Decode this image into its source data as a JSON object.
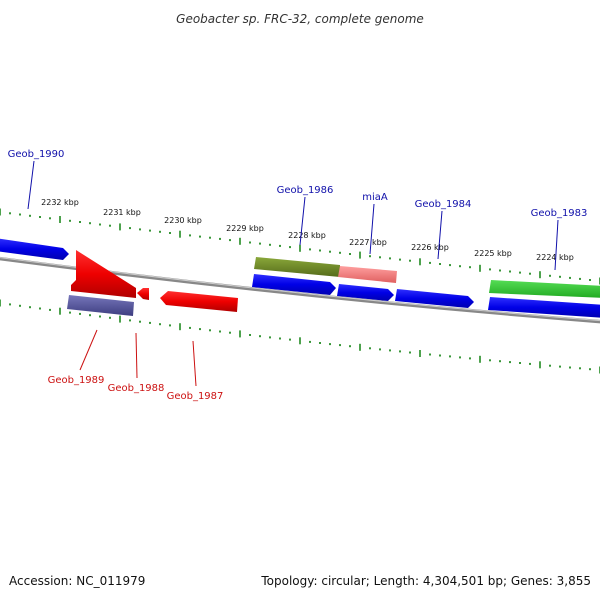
{
  "title": "Geobacter sp. FRC-32, complete genome",
  "footer": {
    "accession": "Accession: NC_011979",
    "summary": "Topology: circular; Length: 4,304,501 bp; Genes: 3,855"
  },
  "ticks": [
    "2232 kbp",
    "2231 kbp",
    "2230 kbp",
    "2229 kbp",
    "2228 kbp",
    "2227 kbp",
    "2226 kbp",
    "2225 kbp",
    "2224 kbp"
  ],
  "genes_above": [
    {
      "label": "Geob_1990",
      "color": "#1010aa"
    },
    {
      "label": "Geob_1986",
      "color": "#1010aa"
    },
    {
      "label": "miaA",
      "color": "#1010aa"
    },
    {
      "label": "Geob_1984",
      "color": "#1010aa"
    },
    {
      "label": "Geob_1983",
      "color": "#1010aa"
    }
  ],
  "genes_below": [
    {
      "label": "Geob_1989",
      "color": "#cc1111"
    },
    {
      "label": "Geob_1988",
      "color": "#cc1111"
    },
    {
      "label": "Geob_1987",
      "color": "#cc1111"
    }
  ],
  "colors": {
    "forward_cds": "#0000ee",
    "reverse_cds": "#ee0000",
    "backbone": "#888888",
    "tick": "#228b22",
    "olive_feature": "#6b8e23",
    "pink_feature": "#f08080",
    "green_feature": "#33cc33",
    "purple_feature": "#555599"
  }
}
